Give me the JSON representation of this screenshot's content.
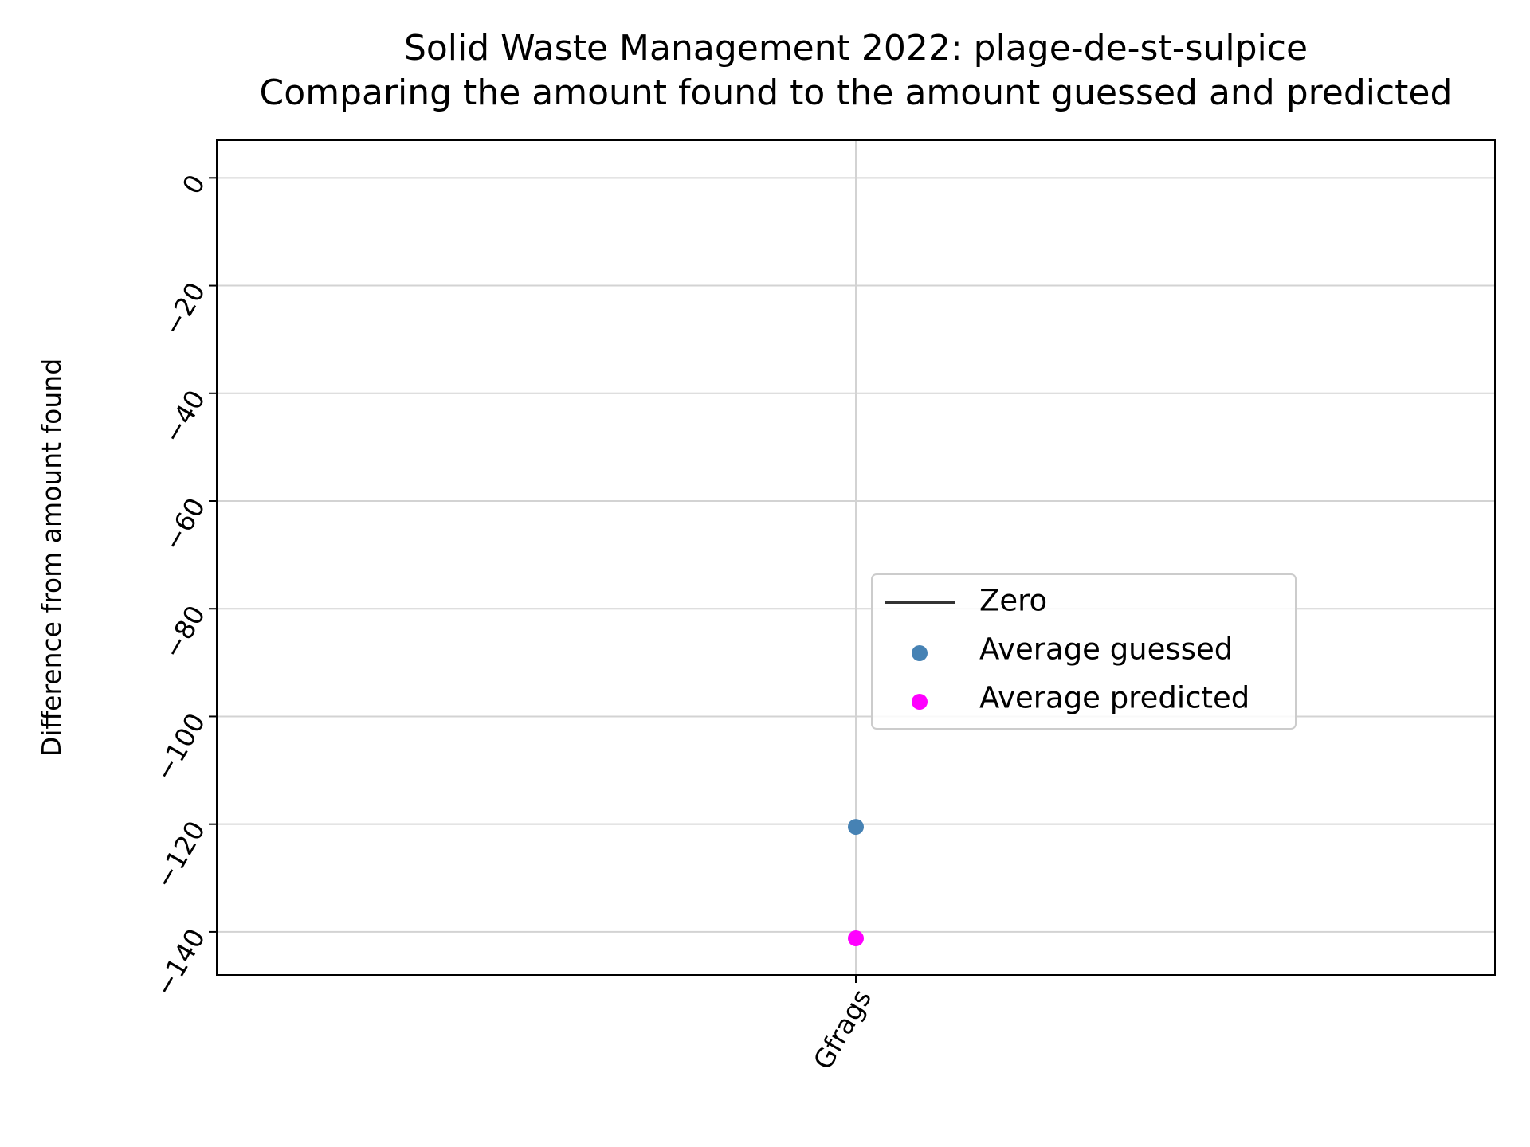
{
  "chart_data": {
    "type": "scatter",
    "title": "Solid Waste Management 2022: plage-de-st-sulpice",
    "subtitle": "Comparing the amount found to the amount guessed and predicted",
    "xlabel": "",
    "ylabel": "Difference from amount found",
    "categories": [
      "Gfrags"
    ],
    "ylim": [
      -148,
      7
    ],
    "yticks": [
      0,
      -20,
      -40,
      -60,
      -80,
      -100,
      -120,
      -140
    ],
    "grid": true,
    "legend_placement": "center-right",
    "series": [
      {
        "name": "Zero",
        "kind": "line",
        "values": [
          0
        ],
        "color": "#333333"
      },
      {
        "name": "Average guessed",
        "kind": "scatter",
        "values": [
          -120.5
        ],
        "color": "#4682b4"
      },
      {
        "name": "Average predicted",
        "kind": "scatter",
        "values": [
          -141.2
        ],
        "color": "#ff00ff"
      }
    ]
  }
}
